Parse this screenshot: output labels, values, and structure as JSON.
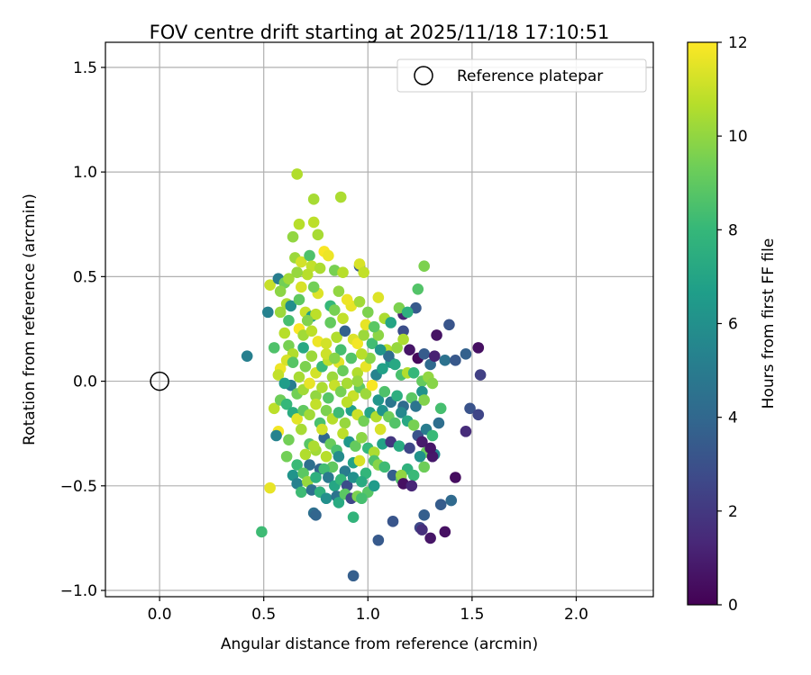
{
  "chart_data": {
    "type": "scatter",
    "title": "FOV centre drift starting at 2025/11/18 17:10:51",
    "xlabel": "Angular distance from reference (arcmin)",
    "ylabel": "Rotation from reference (arcmin)",
    "xlim": [
      -0.26,
      2.37
    ],
    "ylim": [
      -1.03,
      1.62
    ],
    "xticks": [
      0.0,
      0.5,
      1.0,
      1.5,
      2.0
    ],
    "xtick_labels": [
      "0.0",
      "0.5",
      "1.0",
      "1.5",
      "2.0"
    ],
    "yticks": [
      -1.0,
      -0.5,
      0.0,
      0.5,
      1.0,
      1.5
    ],
    "ytick_labels": [
      "−1.0",
      "−0.5",
      "0.0",
      "0.5",
      "1.0",
      "1.5"
    ],
    "grid": true,
    "legend": {
      "position": "top-right",
      "label": "Reference platepar"
    },
    "reference_point": {
      "x": 0.0,
      "y": 0.0
    },
    "colorbar": {
      "label": "Hours from first FF file",
      "min": 0,
      "max": 12,
      "ticks": [
        0,
        2,
        4,
        6,
        8,
        10,
        12
      ],
      "tick_labels": [
        "0",
        "2",
        "4",
        "6",
        "8",
        "10",
        "12"
      ],
      "colormap": [
        "#440154",
        "#482878",
        "#3e4989",
        "#31688e",
        "#26828e",
        "#1f9e89",
        "#35b779",
        "#6ece58",
        "#b5de2b",
        "#fde725"
      ]
    },
    "points_note": "each point: [x arcmin, y arcmin, hours]",
    "points": [
      [
        0.66,
        0.99,
        10.6
      ],
      [
        0.87,
        0.88,
        10.5
      ],
      [
        0.74,
        0.87,
        10.4
      ],
      [
        0.67,
        0.75,
        10.7
      ],
      [
        0.74,
        0.76,
        10.8
      ],
      [
        0.64,
        0.69,
        10.0
      ],
      [
        0.76,
        0.7,
        10.4
      ],
      [
        0.79,
        0.62,
        11.9
      ],
      [
        0.81,
        0.6,
        11.7
      ],
      [
        0.65,
        0.59,
        10.2
      ],
      [
        0.68,
        0.57,
        11.2
      ],
      [
        0.72,
        0.6,
        8.6
      ],
      [
        0.53,
        0.46,
        11.0
      ],
      [
        0.57,
        0.49,
        5.1
      ],
      [
        0.6,
        0.47,
        9.4
      ],
      [
        0.73,
        0.55,
        10.9
      ],
      [
        0.77,
        0.54,
        10.5
      ],
      [
        0.84,
        0.53,
        9.5
      ],
      [
        0.88,
        0.52,
        10.7
      ],
      [
        0.96,
        0.55,
        3.4
      ],
      [
        0.96,
        0.56,
        11.3
      ],
      [
        0.98,
        0.52,
        10.9
      ],
      [
        1.27,
        0.55,
        9.6
      ],
      [
        1.24,
        0.44,
        8.7
      ],
      [
        0.52,
        0.33,
        5.3
      ],
      [
        0.58,
        0.43,
        9.9
      ],
      [
        0.61,
        0.37,
        10.5
      ],
      [
        0.63,
        0.36,
        5.9
      ],
      [
        0.58,
        0.33,
        10.2
      ],
      [
        0.67,
        0.39,
        9.0
      ],
      [
        0.7,
        0.33,
        11.0
      ],
      [
        0.73,
        0.31,
        6.7
      ],
      [
        0.75,
        0.32,
        10.8
      ],
      [
        0.76,
        0.42,
        11.4
      ],
      [
        0.82,
        0.36,
        8.0
      ],
      [
        0.84,
        0.34,
        9.5
      ],
      [
        0.88,
        0.3,
        10.9
      ],
      [
        0.92,
        0.36,
        11.6
      ],
      [
        0.96,
        0.38,
        10.3
      ],
      [
        1.0,
        0.33,
        9.6
      ],
      [
        1.05,
        0.4,
        11.4
      ],
      [
        1.08,
        0.3,
        10.5
      ],
      [
        1.11,
        0.28,
        7.0
      ],
      [
        1.17,
        0.32,
        1.2
      ],
      [
        1.15,
        0.35,
        9.6
      ],
      [
        1.23,
        0.35,
        3.4
      ],
      [
        1.19,
        0.33,
        7.6
      ],
      [
        1.33,
        0.22,
        0.6
      ],
      [
        1.39,
        0.27,
        3.2
      ],
      [
        1.17,
        0.24,
        2.9
      ],
      [
        0.6,
        0.23,
        10.7
      ],
      [
        0.62,
        0.17,
        9.5
      ],
      [
        0.64,
        0.13,
        10.6
      ],
      [
        0.67,
        0.25,
        11.9
      ],
      [
        0.69,
        0.22,
        10.3
      ],
      [
        0.71,
        0.29,
        9.7
      ],
      [
        0.73,
        0.24,
        10.8
      ],
      [
        0.76,
        0.19,
        11.7
      ],
      [
        0.8,
        0.18,
        11.2
      ],
      [
        0.82,
        0.28,
        9.1
      ],
      [
        0.85,
        0.21,
        10.6
      ],
      [
        0.87,
        0.15,
        8.4
      ],
      [
        0.89,
        0.24,
        3.7
      ],
      [
        0.93,
        0.2,
        11.4
      ],
      [
        0.95,
        0.18,
        11.8
      ],
      [
        0.98,
        0.22,
        10.2
      ],
      [
        1.02,
        0.18,
        8.3
      ],
      [
        1.05,
        0.22,
        9.9
      ],
      [
        1.09,
        0.15,
        10.7
      ],
      [
        1.11,
        0.09,
        6.4
      ],
      [
        1.14,
        0.16,
        10.1
      ],
      [
        1.17,
        0.2,
        10.5
      ],
      [
        1.2,
        0.15,
        0.7
      ],
      [
        1.24,
        0.11,
        0.3
      ],
      [
        1.27,
        0.13,
        3.5
      ],
      [
        1.3,
        0.08,
        4.1
      ],
      [
        1.32,
        0.12,
        1.1
      ],
      [
        1.37,
        0.1,
        4.5
      ],
      [
        1.42,
        0.1,
        3.3
      ],
      [
        1.47,
        0.13,
        3.7
      ],
      [
        1.53,
        0.16,
        0.5
      ],
      [
        1.54,
        0.03,
        2.3
      ],
      [
        0.42,
        0.12,
        5.2
      ],
      [
        0.58,
        0.06,
        11.7
      ],
      [
        0.61,
        0.1,
        11.3
      ],
      [
        0.64,
        0.09,
        8.8
      ],
      [
        0.67,
        0.02,
        10.4
      ],
      [
        0.7,
        0.07,
        9.6
      ],
      [
        0.73,
        0.12,
        10.2
      ],
      [
        0.75,
        0.04,
        11.2
      ],
      [
        0.78,
        0.07,
        8.1
      ],
      [
        0.81,
        0.1,
        10.8
      ],
      [
        0.83,
        0.02,
        10.2
      ],
      [
        0.86,
        0.09,
        11.5
      ],
      [
        0.88,
        0.05,
        9.2
      ],
      [
        0.92,
        0.11,
        8.7
      ],
      [
        0.95,
        0.04,
        10.6
      ],
      [
        0.99,
        0.07,
        11.6
      ],
      [
        1.01,
        0.11,
        9.8
      ],
      [
        1.04,
        0.03,
        5.4
      ],
      [
        1.07,
        0.06,
        6.8
      ],
      [
        1.1,
        0.12,
        4.3
      ],
      [
        1.13,
        0.08,
        7.2
      ],
      [
        1.16,
        0.03,
        8.5
      ],
      [
        1.19,
        0.04,
        10.6
      ],
      [
        1.22,
        0.04,
        8.0
      ],
      [
        1.26,
        0.0,
        9.1
      ],
      [
        1.29,
        0.02,
        10.0
      ],
      [
        1.31,
        -0.01,
        9.8
      ],
      [
        1.26,
        -0.05,
        6.1
      ],
      [
        0.63,
        -0.02,
        5.1
      ],
      [
        0.66,
        -0.06,
        9.4
      ],
      [
        0.69,
        -0.04,
        10.3
      ],
      [
        0.72,
        -0.01,
        11.6
      ],
      [
        0.75,
        -0.07,
        10.0
      ],
      [
        0.78,
        -0.03,
        10.5
      ],
      [
        0.81,
        -0.08,
        8.8
      ],
      [
        0.84,
        -0.02,
        11.0
      ],
      [
        0.87,
        -0.05,
        9.5
      ],
      [
        0.9,
        -0.01,
        10.4
      ],
      [
        0.93,
        -0.07,
        11.0
      ],
      [
        0.96,
        -0.03,
        9.0
      ],
      [
        0.99,
        -0.06,
        10.2
      ],
      [
        1.02,
        -0.02,
        11.9
      ],
      [
        1.05,
        -0.09,
        6.3
      ],
      [
        1.08,
        -0.05,
        8.6
      ],
      [
        1.11,
        -0.1,
        4.7
      ],
      [
        1.14,
        -0.07,
        7.5
      ],
      [
        1.17,
        -0.12,
        4.2
      ],
      [
        1.21,
        -0.08,
        8.9
      ],
      [
        1.23,
        -0.12,
        4.6
      ],
      [
        1.27,
        -0.09,
        9.7
      ],
      [
        1.35,
        -0.13,
        8.4
      ],
      [
        1.49,
        -0.13,
        3.1
      ],
      [
        1.53,
        -0.16,
        2.5
      ],
      [
        0.55,
        -0.13,
        10.8
      ],
      [
        0.58,
        -0.09,
        9.3
      ],
      [
        0.61,
        -0.11,
        8.0
      ],
      [
        0.64,
        -0.15,
        7.4
      ],
      [
        0.66,
        -0.18,
        11.5
      ],
      [
        0.69,
        -0.14,
        9.0
      ],
      [
        0.72,
        -0.16,
        10.3
      ],
      [
        0.75,
        -0.11,
        10.9
      ],
      [
        0.77,
        -0.2,
        8.5
      ],
      [
        0.8,
        -0.14,
        9.6
      ],
      [
        0.83,
        -0.18,
        10.7
      ],
      [
        0.86,
        -0.15,
        8.2
      ],
      [
        0.89,
        -0.2,
        10.1
      ],
      [
        0.92,
        -0.14,
        6.7
      ],
      [
        0.95,
        -0.16,
        11.1
      ],
      [
        0.98,
        -0.19,
        9.4
      ],
      [
        1.01,
        -0.15,
        7.0
      ],
      [
        1.04,
        -0.17,
        10.6
      ],
      [
        1.07,
        -0.14,
        6.2
      ],
      [
        1.1,
        -0.17,
        9.3
      ],
      [
        1.13,
        -0.2,
        8.7
      ],
      [
        1.16,
        -0.15,
        5.6
      ],
      [
        1.19,
        -0.19,
        7.2
      ],
      [
        1.22,
        -0.21,
        9.5
      ],
      [
        1.24,
        -0.26,
        3.1
      ],
      [
        1.28,
        -0.23,
        5.0
      ],
      [
        1.31,
        -0.26,
        8.1
      ],
      [
        1.34,
        -0.2,
        4.3
      ],
      [
        0.57,
        -0.24,
        11.8
      ],
      [
        0.56,
        -0.26,
        5.4
      ],
      [
        0.62,
        -0.28,
        9.4
      ],
      [
        0.68,
        -0.23,
        10.4
      ],
      [
        0.72,
        -0.3,
        8.8
      ],
      [
        0.75,
        -0.33,
        10.3
      ],
      [
        0.79,
        -0.27,
        4.0
      ],
      [
        0.82,
        -0.3,
        9.2
      ],
      [
        0.85,
        -0.33,
        8.5
      ],
      [
        0.88,
        -0.25,
        10.8
      ],
      [
        0.91,
        -0.29,
        6.4
      ],
      [
        0.94,
        -0.31,
        9.1
      ],
      [
        0.97,
        -0.27,
        9.9
      ],
      [
        1.0,
        -0.32,
        8.0
      ],
      [
        1.03,
        -0.34,
        10.5
      ],
      [
        1.07,
        -0.3,
        6.9
      ],
      [
        1.11,
        -0.29,
        1.9
      ],
      [
        1.15,
        -0.31,
        7.3
      ],
      [
        1.2,
        -0.32,
        2.6
      ],
      [
        1.26,
        -0.29,
        0.9
      ],
      [
        1.28,
        -0.34,
        9.2
      ],
      [
        1.32,
        -0.35,
        5.5
      ],
      [
        0.61,
        -0.36,
        9.4
      ],
      [
        0.66,
        -0.4,
        8.1
      ],
      [
        0.7,
        -0.35,
        10.6
      ],
      [
        0.72,
        -0.4,
        4.4
      ],
      [
        0.74,
        -0.31,
        10.5
      ],
      [
        0.77,
        -0.42,
        3.9
      ],
      [
        0.8,
        -0.36,
        10.7
      ],
      [
        0.83,
        -0.41,
        9.0
      ],
      [
        0.86,
        -0.36,
        5.8
      ],
      [
        0.89,
        -0.43,
        5.0
      ],
      [
        0.93,
        -0.39,
        6.9
      ],
      [
        0.96,
        -0.38,
        11.3
      ],
      [
        0.99,
        -0.44,
        7.9
      ],
      [
        1.03,
        -0.38,
        8.6
      ],
      [
        1.05,
        -0.4,
        9.8
      ],
      [
        1.08,
        -0.41,
        8.2
      ],
      [
        1.12,
        -0.45,
        3.6
      ],
      [
        1.16,
        -0.47,
        8.7
      ],
      [
        1.19,
        -0.42,
        7.7
      ],
      [
        1.22,
        -0.45,
        8.1
      ],
      [
        1.25,
        -0.36,
        6.1
      ],
      [
        1.27,
        -0.41,
        9.3
      ],
      [
        1.31,
        -0.36,
        0.8
      ],
      [
        0.64,
        -0.45,
        6.2
      ],
      [
        0.66,
        -0.49,
        5.3
      ],
      [
        0.69,
        -0.44,
        8.9
      ],
      [
        0.71,
        -0.48,
        10.1
      ],
      [
        0.75,
        -0.46,
        7.6
      ],
      [
        0.79,
        -0.42,
        8.3
      ],
      [
        0.81,
        -0.46,
        4.9
      ],
      [
        0.84,
        -0.5,
        7.1
      ],
      [
        0.87,
        -0.47,
        8.0
      ],
      [
        0.9,
        -0.5,
        2.9
      ],
      [
        0.93,
        -0.46,
        6.0
      ],
      [
        0.97,
        -0.48,
        7.3
      ],
      [
        1.0,
        -0.53,
        8.8
      ],
      [
        1.03,
        -0.5,
        6.5
      ],
      [
        1.16,
        -0.45,
        10.0
      ],
      [
        1.17,
        -0.49,
        0.5
      ],
      [
        1.21,
        -0.5,
        1.3
      ],
      [
        1.42,
        -0.46,
        0.4
      ],
      [
        1.47,
        -0.24,
        1.5
      ],
      [
        1.3,
        -0.32,
        0.7
      ],
      [
        1.35,
        -0.59,
        3.5
      ],
      [
        1.4,
        -0.57,
        4.1
      ],
      [
        0.53,
        -0.51,
        11.6
      ],
      [
        0.68,
        -0.53,
        8.2
      ],
      [
        0.73,
        -0.52,
        4.4
      ],
      [
        0.77,
        -0.53,
        7.7
      ],
      [
        0.8,
        -0.56,
        6.0
      ],
      [
        0.85,
        -0.55,
        4.6
      ],
      [
        0.86,
        -0.58,
        7.3
      ],
      [
        0.89,
        -0.54,
        8.9
      ],
      [
        0.92,
        -0.56,
        2.6
      ],
      [
        0.95,
        -0.55,
        9.6
      ],
      [
        0.97,
        -0.56,
        8.4
      ],
      [
        0.74,
        -0.63,
        4.4
      ],
      [
        0.75,
        -0.64,
        3.9
      ],
      [
        0.93,
        -0.65,
        7.8
      ],
      [
        1.12,
        -0.67,
        3.2
      ],
      [
        1.25,
        -0.7,
        2.6
      ],
      [
        1.27,
        -0.64,
        3.6
      ],
      [
        1.26,
        -0.71,
        1.6
      ],
      [
        1.3,
        -0.75,
        0.7
      ],
      [
        1.37,
        -0.72,
        0.5
      ],
      [
        1.05,
        -0.76,
        3.4
      ],
      [
        0.49,
        -0.72,
        8.2
      ],
      [
        0.93,
        -0.93,
        3.6
      ],
      [
        0.9,
        -0.1,
        10.8
      ],
      [
        0.8,
        0.13,
        11.1
      ],
      [
        0.68,
        0.45,
        11.3
      ],
      [
        0.71,
        0.51,
        10.7
      ],
      [
        0.86,
        0.43,
        10.0
      ],
      [
        0.9,
        0.39,
        11.7
      ],
      [
        0.62,
        0.49,
        10.3
      ],
      [
        0.99,
        0.27,
        11.6
      ],
      [
        1.03,
        0.26,
        8.9
      ],
      [
        0.55,
        0.16,
        8.6
      ],
      [
        0.57,
        0.03,
        10.9
      ],
      [
        0.6,
        -0.01,
        6.6
      ],
      [
        0.69,
        0.16,
        7.2
      ],
      [
        0.84,
        0.11,
        9.8
      ],
      [
        0.97,
        0.13,
        10.7
      ],
      [
        1.06,
        0.15,
        6.3
      ],
      [
        0.78,
        -0.23,
        11.2
      ],
      [
        1.06,
        -0.23,
        11.3
      ],
      [
        0.95,
        0.0,
        10.1
      ],
      [
        0.62,
        0.29,
        8.4
      ],
      [
        0.66,
        0.52,
        10.1
      ],
      [
        0.74,
        0.45,
        9.4
      ]
    ]
  }
}
